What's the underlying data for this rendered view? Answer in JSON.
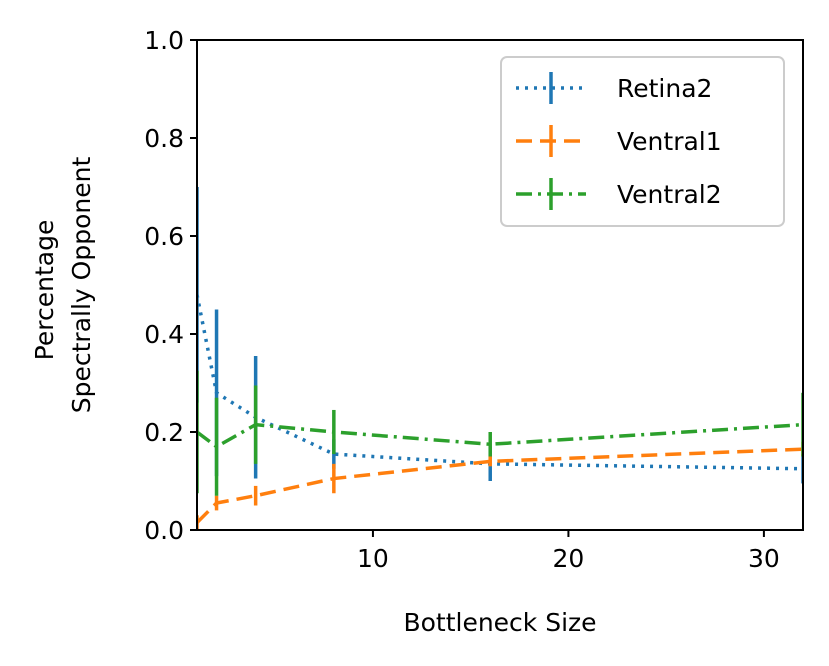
{
  "chart_data": {
    "type": "line",
    "title": "",
    "xlabel": "Bottleneck Size",
    "ylabel_lines": [
      "Percentage",
      "Spectrally Opponent"
    ],
    "xlim": [
      1,
      32
    ],
    "ylim": [
      0.0,
      1.0
    ],
    "xticks": [
      10,
      20,
      30
    ],
    "xtick_labels": [
      "10",
      "20",
      "30"
    ],
    "yticks": [
      0.0,
      0.2,
      0.4,
      0.6,
      0.8,
      1.0
    ],
    "ytick_labels": [
      "0.0",
      "0.2",
      "0.4",
      "0.6",
      "0.8",
      "1.0"
    ],
    "grid": false,
    "legend_position": "top-right",
    "x": [
      1,
      2,
      4,
      8,
      16,
      32
    ],
    "series": [
      {
        "name": "Retina2",
        "color": "#1f77b4",
        "linestyle": "dotted",
        "values": [
          0.48,
          0.28,
          0.23,
          0.155,
          0.135,
          0.125
        ],
        "errors": [
          0.22,
          0.17,
          0.125,
          0.03,
          0.035,
          0.03
        ]
      },
      {
        "name": "Ventral1",
        "color": "#ff7f0e",
        "linestyle": "dashed",
        "values": [
          0.015,
          0.055,
          0.07,
          0.105,
          0.14,
          0.165
        ],
        "errors": [
          0.015,
          0.015,
          0.02,
          0.03,
          0.01,
          0.015
        ]
      },
      {
        "name": "Ventral2",
        "color": "#2ca02c",
        "linestyle": "dashdot",
        "values": [
          0.2,
          0.17,
          0.215,
          0.2,
          0.175,
          0.215
        ],
        "errors": [
          0.125,
          0.1,
          0.08,
          0.045,
          0.025,
          0.065
        ]
      }
    ]
  }
}
